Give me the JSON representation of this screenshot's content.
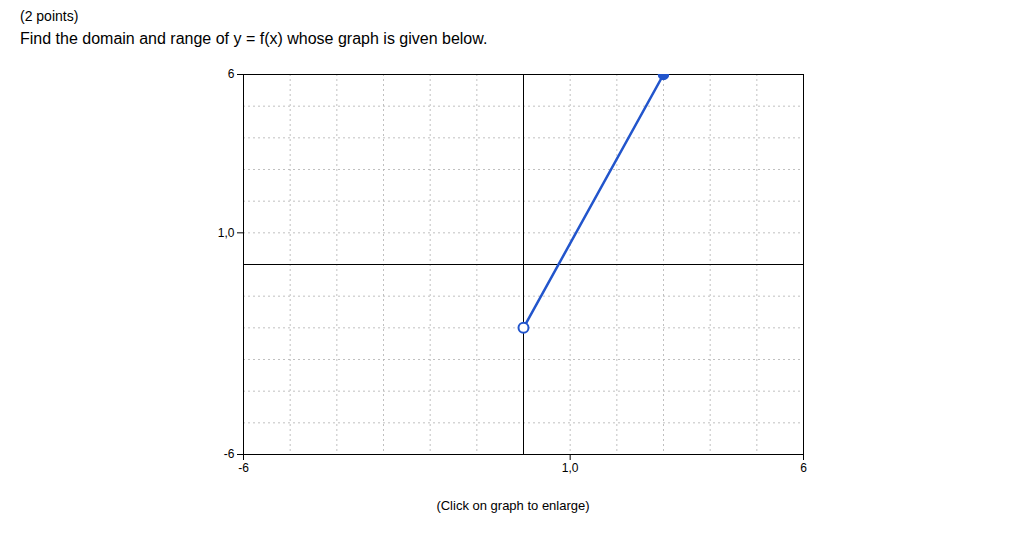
{
  "chart_data": {
    "type": "line",
    "title": "(2 points)",
    "subtitle": "Find the domain and range of y = f(x) whose graph is given below.",
    "caption": "(Click on graph to enlarge)",
    "series": [
      {
        "name": "f(x)",
        "color": "#2255cc",
        "marker": "circle",
        "x": [
          0,
          3
        ],
        "values": [
          -2,
          6
        ]
      }
    ],
    "open_end": [
      0,
      -2
    ],
    "closed_end": [
      3,
      6
    ],
    "xlim": [
      -6,
      6
    ],
    "ylim": [
      -6,
      6
    ],
    "xticks": [
      -6,
      {
        "value": 1,
        "label": "1,0"
      },
      6
    ],
    "yticks": [
      -6,
      {
        "value": 1,
        "label": "1,0"
      },
      6
    ],
    "grid": true
  }
}
